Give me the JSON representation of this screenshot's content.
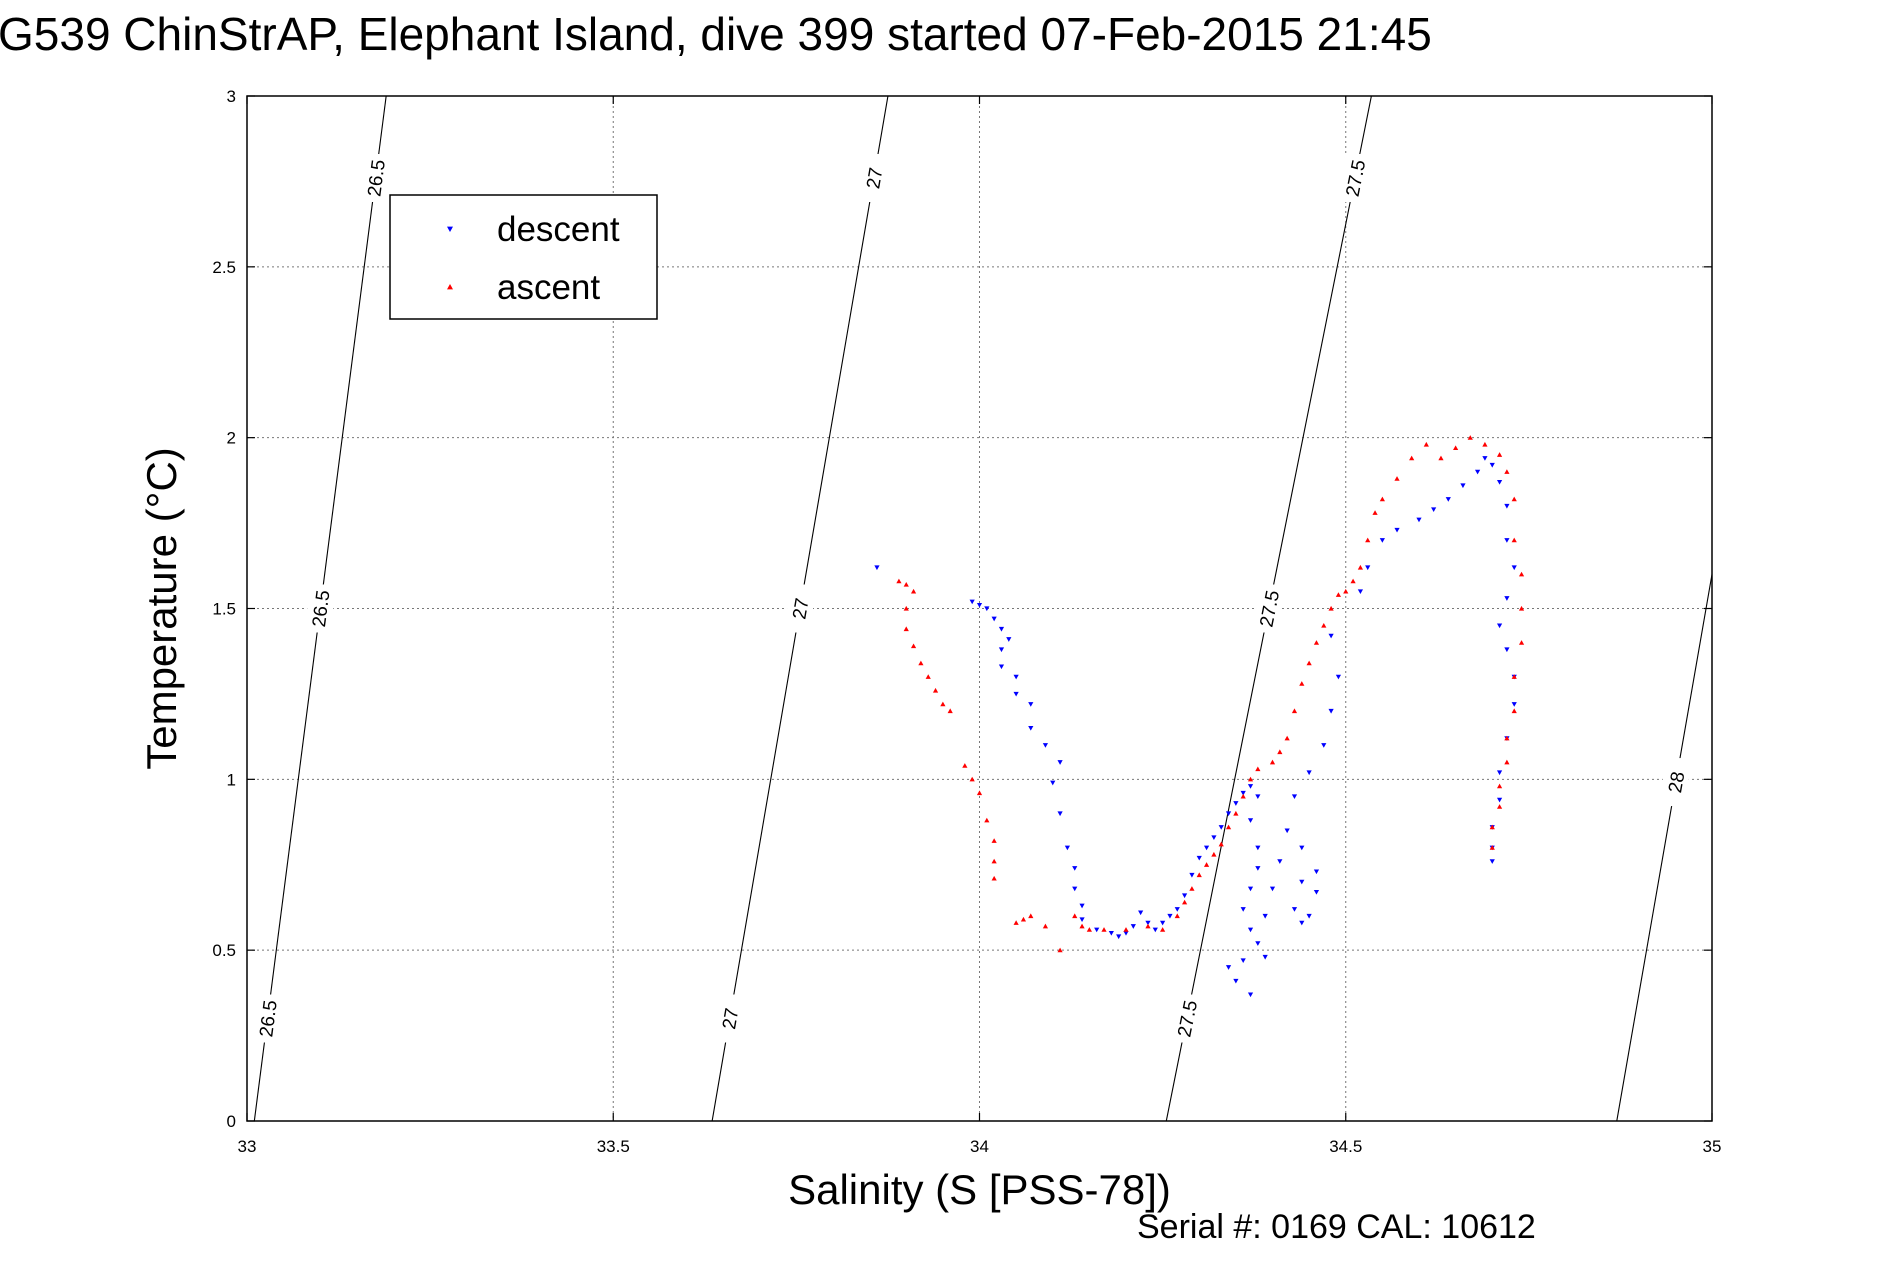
{
  "chart_data": {
    "type": "scatter",
    "title": "G539 ChinStrAP, Elephant Island, dive 399 started 07-Feb-2015 21:45",
    "xlabel": "Salinity (S [PSS-78])",
    "ylabel": "Temperature (°C)",
    "xlim": [
      33,
      35
    ],
    "ylim": [
      0,
      3
    ],
    "x_ticks": [
      "33",
      "33.5",
      "34",
      "34.5",
      "35"
    ],
    "y_ticks": [
      "0",
      "0.5",
      "1",
      "1.5",
      "2",
      "2.5",
      "3"
    ],
    "grid": true,
    "legend_position": "top-left",
    "footer": "Serial #: 0169 CAL: 10612",
    "isopycnals": [
      {
        "label": "26.5",
        "points": [
          [
            33.01,
            0
          ],
          [
            33.19,
            3
          ]
        ]
      },
      {
        "label": "27",
        "points": [
          [
            33.635,
            0
          ],
          [
            33.875,
            3
          ]
        ]
      },
      {
        "label": "27.5",
        "points": [
          [
            34.255,
            0
          ],
          [
            34.535,
            3
          ]
        ]
      },
      {
        "label": "28",
        "points": [
          [
            34.87,
            0
          ],
          [
            35.0,
            1.6
          ]
        ]
      }
    ],
    "series": [
      {
        "name": "descent",
        "color": "#0000ff",
        "marker": "triangle-down",
        "points": [
          [
            33.86,
            1.62
          ],
          [
            33.99,
            1.52
          ],
          [
            34.0,
            1.51
          ],
          [
            34.01,
            1.5
          ],
          [
            34.02,
            1.47
          ],
          [
            34.03,
            1.44
          ],
          [
            34.04,
            1.41
          ],
          [
            34.03,
            1.38
          ],
          [
            34.03,
            1.33
          ],
          [
            34.05,
            1.3
          ],
          [
            34.05,
            1.25
          ],
          [
            34.07,
            1.22
          ],
          [
            34.07,
            1.15
          ],
          [
            34.09,
            1.1
          ],
          [
            34.11,
            1.05
          ],
          [
            34.1,
            0.99
          ],
          [
            34.11,
            0.9
          ],
          [
            34.12,
            0.8
          ],
          [
            34.13,
            0.74
          ],
          [
            34.13,
            0.68
          ],
          [
            34.14,
            0.63
          ],
          [
            34.14,
            0.59
          ],
          [
            34.16,
            0.56
          ],
          [
            34.18,
            0.55
          ],
          [
            34.19,
            0.54
          ],
          [
            34.2,
            0.55
          ],
          [
            34.21,
            0.57
          ],
          [
            34.22,
            0.61
          ],
          [
            34.23,
            0.58
          ],
          [
            34.24,
            0.56
          ],
          [
            34.25,
            0.58
          ],
          [
            34.26,
            0.6
          ],
          [
            34.27,
            0.62
          ],
          [
            34.28,
            0.66
          ],
          [
            34.29,
            0.72
          ],
          [
            34.3,
            0.77
          ],
          [
            34.31,
            0.8
          ],
          [
            34.32,
            0.83
          ],
          [
            34.33,
            0.86
          ],
          [
            34.34,
            0.9
          ],
          [
            34.35,
            0.93
          ],
          [
            34.36,
            0.96
          ],
          [
            34.37,
            0.98
          ],
          [
            34.38,
            0.95
          ],
          [
            34.37,
            0.88
          ],
          [
            34.38,
            0.8
          ],
          [
            34.38,
            0.74
          ],
          [
            34.37,
            0.68
          ],
          [
            34.36,
            0.62
          ],
          [
            34.37,
            0.56
          ],
          [
            34.38,
            0.52
          ],
          [
            34.36,
            0.47
          ],
          [
            34.34,
            0.45
          ],
          [
            34.35,
            0.41
          ],
          [
            34.37,
            0.37
          ],
          [
            34.39,
            0.48
          ],
          [
            34.39,
            0.6
          ],
          [
            34.4,
            0.68
          ],
          [
            34.41,
            0.76
          ],
          [
            34.42,
            0.85
          ],
          [
            34.43,
            0.95
          ],
          [
            34.44,
            0.8
          ],
          [
            34.44,
            0.7
          ],
          [
            34.43,
            0.62
          ],
          [
            34.44,
            0.58
          ],
          [
            34.45,
            0.6
          ],
          [
            34.46,
            0.67
          ],
          [
            34.46,
            0.73
          ],
          [
            34.45,
            1.02
          ],
          [
            34.47,
            1.1
          ],
          [
            34.48,
            1.2
          ],
          [
            34.49,
            1.3
          ],
          [
            34.48,
            1.42
          ],
          [
            34.52,
            1.55
          ],
          [
            34.53,
            1.62
          ],
          [
            34.55,
            1.7
          ],
          [
            34.57,
            1.73
          ],
          [
            34.6,
            1.76
          ],
          [
            34.62,
            1.79
          ],
          [
            34.64,
            1.82
          ],
          [
            34.66,
            1.86
          ],
          [
            34.68,
            1.9
          ],
          [
            34.69,
            1.94
          ],
          [
            34.7,
            1.92
          ],
          [
            34.71,
            1.87
          ],
          [
            34.72,
            1.8
          ],
          [
            34.72,
            1.7
          ],
          [
            34.73,
            1.62
          ],
          [
            34.72,
            1.53
          ],
          [
            34.71,
            1.45
          ],
          [
            34.72,
            1.38
          ],
          [
            34.73,
            1.3
          ],
          [
            34.73,
            1.22
          ],
          [
            34.72,
            1.12
          ],
          [
            34.71,
            1.02
          ],
          [
            34.71,
            0.94
          ],
          [
            34.7,
            0.86
          ],
          [
            34.7,
            0.8
          ],
          [
            34.7,
            0.76
          ]
        ]
      },
      {
        "name": "ascent",
        "color": "#ff0000",
        "marker": "triangle-up",
        "points": [
          [
            33.89,
            1.58
          ],
          [
            33.9,
            1.57
          ],
          [
            33.91,
            1.55
          ],
          [
            33.9,
            1.5
          ],
          [
            33.9,
            1.44
          ],
          [
            33.91,
            1.39
          ],
          [
            33.92,
            1.34
          ],
          [
            33.93,
            1.3
          ],
          [
            33.94,
            1.26
          ],
          [
            33.95,
            1.22
          ],
          [
            33.96,
            1.2
          ],
          [
            33.98,
            1.04
          ],
          [
            33.99,
            1.0
          ],
          [
            34.0,
            0.96
          ],
          [
            34.01,
            0.88
          ],
          [
            34.02,
            0.82
          ],
          [
            34.02,
            0.76
          ],
          [
            34.02,
            0.71
          ],
          [
            34.05,
            0.58
          ],
          [
            34.06,
            0.59
          ],
          [
            34.07,
            0.6
          ],
          [
            34.09,
            0.57
          ],
          [
            34.11,
            0.5
          ],
          [
            34.13,
            0.6
          ],
          [
            34.14,
            0.57
          ],
          [
            34.15,
            0.56
          ],
          [
            34.17,
            0.56
          ],
          [
            34.2,
            0.56
          ],
          [
            34.23,
            0.57
          ],
          [
            34.25,
            0.56
          ],
          [
            34.27,
            0.6
          ],
          [
            34.28,
            0.64
          ],
          [
            34.29,
            0.68
          ],
          [
            34.3,
            0.72
          ],
          [
            34.31,
            0.75
          ],
          [
            34.32,
            0.78
          ],
          [
            34.33,
            0.81
          ],
          [
            34.34,
            0.86
          ],
          [
            34.35,
            0.9
          ],
          [
            34.36,
            0.95
          ],
          [
            34.37,
            1.0
          ],
          [
            34.38,
            1.03
          ],
          [
            34.4,
            1.05
          ],
          [
            34.41,
            1.08
          ],
          [
            34.42,
            1.12
          ],
          [
            34.43,
            1.2
          ],
          [
            34.44,
            1.28
          ],
          [
            34.45,
            1.34
          ],
          [
            34.46,
            1.4
          ],
          [
            34.47,
            1.45
          ],
          [
            34.48,
            1.5
          ],
          [
            34.49,
            1.54
          ],
          [
            34.5,
            1.55
          ],
          [
            34.51,
            1.58
          ],
          [
            34.52,
            1.62
          ],
          [
            34.53,
            1.7
          ],
          [
            34.54,
            1.78
          ],
          [
            34.55,
            1.82
          ],
          [
            34.57,
            1.88
          ],
          [
            34.59,
            1.94
          ],
          [
            34.61,
            1.98
          ],
          [
            34.63,
            1.94
          ],
          [
            34.65,
            1.97
          ],
          [
            34.67,
            2.0
          ],
          [
            34.69,
            1.98
          ],
          [
            34.71,
            1.95
          ],
          [
            34.72,
            1.9
          ],
          [
            34.73,
            1.82
          ],
          [
            34.73,
            1.7
          ],
          [
            34.74,
            1.6
          ],
          [
            34.74,
            1.5
          ],
          [
            34.74,
            1.4
          ],
          [
            34.73,
            1.3
          ],
          [
            34.73,
            1.2
          ],
          [
            34.72,
            1.12
          ],
          [
            34.72,
            1.05
          ],
          [
            34.71,
            0.98
          ],
          [
            34.71,
            0.92
          ],
          [
            34.7,
            0.86
          ],
          [
            34.7,
            0.8
          ]
        ]
      }
    ]
  }
}
